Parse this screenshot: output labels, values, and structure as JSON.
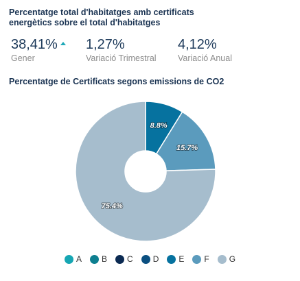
{
  "header": {
    "title": "Percentatge total d'habitatges amb certificats energètics sobre el total d'habitatges"
  },
  "kpis": [
    {
      "value": "38,41%",
      "label": "Gener",
      "trend": "up",
      "trend_color": "#1fa9b8"
    },
    {
      "value": "1,27%",
      "label": "Variació Trimestral"
    },
    {
      "value": "4,12%",
      "label": "Variació Anual"
    }
  ],
  "chart_data": {
    "type": "pie",
    "title": "Percentatge de Certificats segons emissions de CO2",
    "donut": true,
    "legend_position": "bottom",
    "categories": [
      "A",
      "B",
      "C",
      "D",
      "E",
      "F",
      "G"
    ],
    "values": [
      0,
      0,
      0,
      0,
      8.8,
      15.7,
      75.4
    ],
    "labels": [
      "",
      "",
      "",
      "",
      "8.8%",
      "15.7%",
      "75.4%"
    ],
    "colors": [
      "#16a6b3",
      "#0e7f90",
      "#0b2a52",
      "#0b4f80",
      "#06729f",
      "#5b9bbd",
      "#a6bdcd"
    ]
  }
}
